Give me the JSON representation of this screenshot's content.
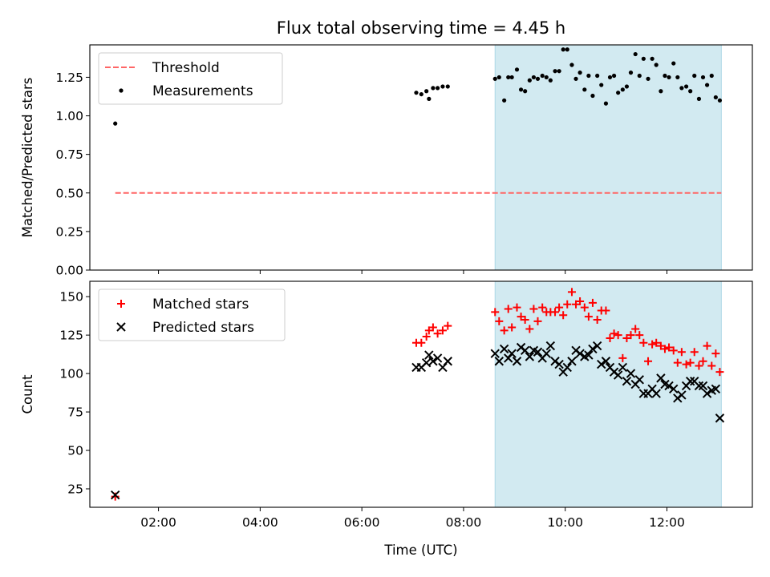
{
  "title": "Flux total observing time = 4.45 h",
  "colors": {
    "threshold": "#ff6666",
    "measurements": "#000000",
    "matched": "#ff0000",
    "predicted": "#000000",
    "shade": "#add8e6"
  },
  "chart_data": [
    {
      "type": "scatter",
      "ylabel": "Matched/Predicted stars",
      "xlim": [
        0.65,
        13.68
      ],
      "ylim": [
        0.0,
        1.46
      ],
      "yticks": [
        0.0,
        0.25,
        0.5,
        0.75,
        1.0,
        1.25
      ],
      "ytick_labels": [
        "0.00",
        "0.25",
        "0.50",
        "0.75",
        "1.00",
        "1.25"
      ],
      "shaded_span": [
        8.62,
        13.07
      ],
      "legend": {
        "position": "upper-left",
        "entries": [
          "Threshold",
          "Measurements"
        ]
      },
      "threshold": {
        "name": "Threshold",
        "value": 0.5,
        "x": [
          1.15,
          13.07
        ],
        "style": "dashed"
      },
      "series": [
        {
          "name": "Measurements",
          "marker": "dot",
          "x": [
            1.15,
            7.07,
            7.17,
            7.27,
            7.32,
            7.4,
            7.49,
            7.59,
            7.69,
            8.62,
            8.7,
            8.8,
            8.88,
            8.95,
            9.05,
            9.13,
            9.21,
            9.3,
            9.38,
            9.46,
            9.55,
            9.63,
            9.71,
            9.8,
            9.88,
            9.96,
            10.04,
            10.13,
            10.21,
            10.29,
            10.38,
            10.46,
            10.54,
            10.63,
            10.71,
            10.8,
            10.88,
            10.96,
            11.04,
            11.13,
            11.21,
            11.29,
            11.38,
            11.46,
            11.54,
            11.63,
            11.71,
            11.79,
            11.88,
            11.96,
            12.04,
            12.13,
            12.21,
            12.29,
            12.38,
            12.46,
            12.54,
            12.63,
            12.71,
            12.79,
            12.88,
            12.96,
            13.04
          ],
          "y": [
            0.95,
            1.15,
            1.14,
            1.16,
            1.11,
            1.18,
            1.18,
            1.19,
            1.19,
            1.24,
            1.25,
            1.1,
            1.25,
            1.25,
            1.3,
            1.17,
            1.16,
            1.23,
            1.25,
            1.24,
            1.26,
            1.25,
            1.23,
            1.29,
            1.29,
            1.43,
            1.43,
            1.33,
            1.24,
            1.28,
            1.17,
            1.26,
            1.13,
            1.26,
            1.2,
            1.08,
            1.25,
            1.26,
            1.15,
            1.17,
            1.19,
            1.28,
            1.4,
            1.26,
            1.37,
            1.24,
            1.37,
            1.33,
            1.16,
            1.26,
            1.25,
            1.34,
            1.25,
            1.18,
            1.19,
            1.16,
            1.26,
            1.11,
            1.25,
            1.2,
            1.26,
            1.12,
            1.1
          ]
        }
      ]
    },
    {
      "type": "scatter",
      "xlabel": "Time (UTC)",
      "ylabel": "Count",
      "xlim": [
        0.65,
        13.68
      ],
      "ylim": [
        13,
        160
      ],
      "xticks": [
        2,
        4,
        6,
        8,
        10,
        12
      ],
      "xtick_labels": [
        "02:00",
        "04:00",
        "06:00",
        "08:00",
        "10:00",
        "12:00"
      ],
      "yticks": [
        25,
        50,
        75,
        100,
        125,
        150
      ],
      "ytick_labels": [
        "25",
        "50",
        "75",
        "100",
        "125",
        "150"
      ],
      "shaded_span": [
        8.62,
        13.07
      ],
      "legend": {
        "position": "upper-left",
        "entries": [
          "Matched stars",
          "Predicted stars"
        ]
      },
      "series": [
        {
          "name": "Matched stars",
          "marker": "plus",
          "x": [
            1.15,
            7.07,
            7.17,
            7.27,
            7.32,
            7.4,
            7.49,
            7.59,
            7.69,
            8.62,
            8.7,
            8.8,
            8.88,
            8.95,
            9.05,
            9.13,
            9.21,
            9.3,
            9.38,
            9.46,
            9.55,
            9.63,
            9.71,
            9.8,
            9.88,
            9.96,
            10.04,
            10.13,
            10.21,
            10.29,
            10.38,
            10.46,
            10.54,
            10.63,
            10.71,
            10.8,
            10.88,
            10.96,
            11.04,
            11.13,
            11.21,
            11.29,
            11.38,
            11.46,
            11.54,
            11.63,
            11.71,
            11.79,
            11.88,
            11.96,
            12.04,
            12.13,
            12.21,
            12.29,
            12.38,
            12.46,
            12.54,
            12.63,
            12.71,
            12.79,
            12.88,
            12.96,
            13.04
          ],
          "y": [
            20,
            120,
            120,
            124,
            128,
            130,
            126,
            128,
            131,
            140,
            134,
            128,
            142,
            130,
            143,
            137,
            135,
            129,
            142,
            134,
            143,
            140,
            140,
            140,
            143,
            138,
            145,
            153,
            145,
            147,
            143,
            137,
            146,
            135,
            141,
            141,
            123,
            126,
            125,
            110,
            123,
            125,
            129,
            125,
            120,
            108,
            119,
            120,
            118,
            116,
            117,
            115,
            107,
            114,
            106,
            107,
            114,
            105,
            108,
            118,
            105,
            113,
            101
          ]
        },
        {
          "name": "Predicted stars",
          "marker": "x",
          "x": [
            1.15,
            7.07,
            7.17,
            7.27,
            7.32,
            7.4,
            7.49,
            7.59,
            7.69,
            8.62,
            8.7,
            8.8,
            8.88,
            8.95,
            9.05,
            9.13,
            9.21,
            9.3,
            9.38,
            9.46,
            9.55,
            9.63,
            9.71,
            9.8,
            9.88,
            9.96,
            10.04,
            10.13,
            10.21,
            10.29,
            10.38,
            10.46,
            10.54,
            10.63,
            10.71,
            10.8,
            10.88,
            10.96,
            11.04,
            11.13,
            11.21,
            11.29,
            11.38,
            11.46,
            11.54,
            11.63,
            11.71,
            11.79,
            11.88,
            11.96,
            12.04,
            12.13,
            12.21,
            12.29,
            12.38,
            12.46,
            12.54,
            12.63,
            12.71,
            12.79,
            12.88,
            12.96,
            13.04
          ],
          "y": [
            21,
            104,
            104,
            107,
            112,
            108,
            110,
            104,
            108,
            113,
            108,
            116,
            110,
            113,
            108,
            117,
            115,
            111,
            115,
            114,
            110,
            113,
            118,
            108,
            106,
            101,
            104,
            108,
            115,
            113,
            111,
            112,
            116,
            118,
            106,
            108,
            104,
            101,
            99,
            104,
            95,
            100,
            93,
            96,
            87,
            87,
            90,
            87,
            97,
            93,
            92,
            90,
            84,
            86,
            92,
            95,
            95,
            92,
            92,
            87,
            89,
            90,
            71
          ]
        }
      ]
    }
  ]
}
